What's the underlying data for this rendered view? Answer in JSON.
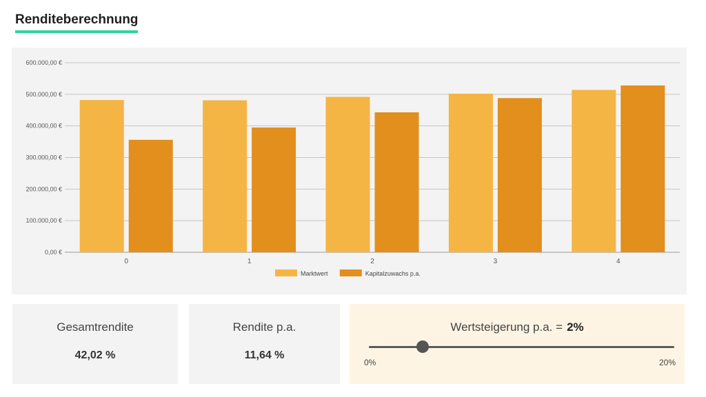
{
  "page": {
    "title": "Renditeberechnung"
  },
  "colors": {
    "title_underline": "#2ed3a0",
    "marktwert": "#f4b545",
    "kapitalzuwachs": "#e28f1e",
    "panel_bg": "#f3f3f3",
    "slider_card_bg": "#fdf4e3"
  },
  "chart_data": {
    "type": "bar",
    "categories": [
      "0",
      "1",
      "2",
      "3",
      "4"
    ],
    "series": [
      {
        "name": "Marktwert",
        "values": [
          482000,
          481000,
          492000,
          502000,
          514000
        ],
        "color": "#f4b545"
      },
      {
        "name": "Kapitalzuwachs p.a.",
        "values": [
          356000,
          395000,
          443000,
          488000,
          528000
        ],
        "color": "#e28f1e"
      }
    ],
    "ylim": [
      0,
      600000
    ],
    "yticks": [
      0,
      100000,
      200000,
      300000,
      400000,
      500000,
      600000
    ],
    "ytick_labels": [
      "0,00 €",
      "100.000,00 €",
      "200.000,00 €",
      "300.000,00 €",
      "400.000,00 €",
      "500.000,00 €",
      "600.000,00 €"
    ],
    "xlabel": "",
    "ylabel": "",
    "grid": true,
    "legend_position": "bottom-center"
  },
  "stats": {
    "gesamtrendite": {
      "label": "Gesamtrendite",
      "value": "42,02 %"
    },
    "rendite_pa": {
      "label": "Rendite p.a.",
      "value": "11,64 %"
    }
  },
  "slider": {
    "label": "Wertsteigerung p.a. =",
    "value_text": "2%",
    "value": 2,
    "min": 0,
    "max": 20,
    "min_label": "0%",
    "max_label": "20%"
  }
}
